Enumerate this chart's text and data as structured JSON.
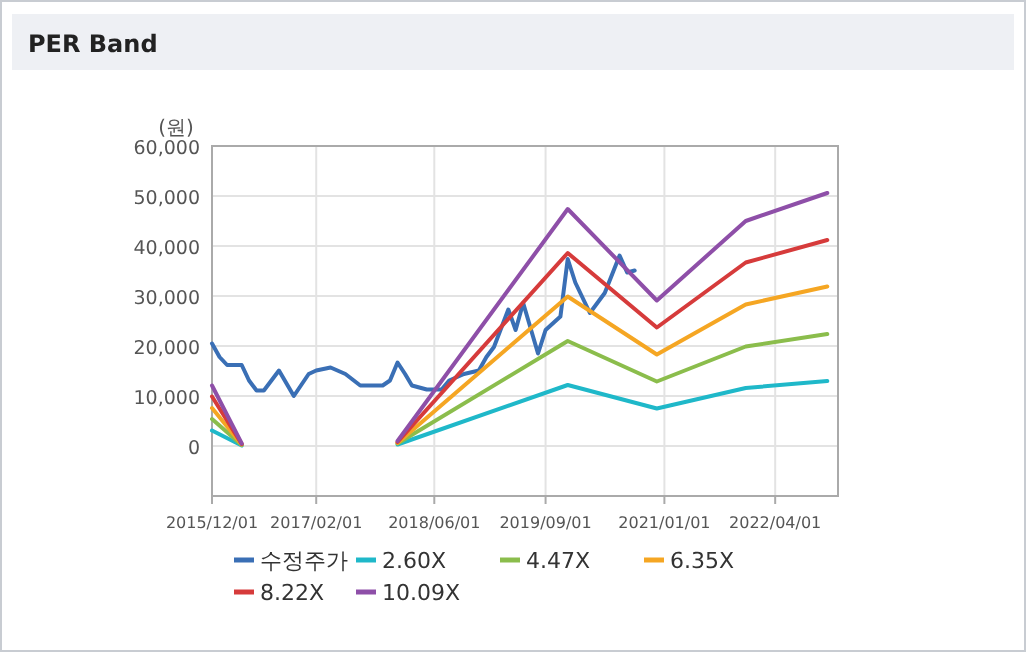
{
  "chart_data": {
    "type": "line",
    "title": "PER Band",
    "ylabel": "(원)",
    "xlim": [
      "2015-12-01",
      "2022-12-15"
    ],
    "xticks": [
      {
        "value": "2015-12-01",
        "label": "2015/12/01"
      },
      {
        "value": "2017-02-01",
        "label": "2017/02/01"
      },
      {
        "value": "2018-06-01",
        "label": "2018/06/01"
      },
      {
        "value": "2019-09-01",
        "label": "2019/09/01"
      },
      {
        "value": "2021-01-01",
        "label": "2021/01/01"
      },
      {
        "value": "2022-04-01",
        "label": "2022/04/01"
      }
    ],
    "ylim": [
      -10000,
      60000
    ],
    "yticks": [
      {
        "value": 0,
        "label": "0"
      },
      {
        "value": 10000,
        "label": "10,000"
      },
      {
        "value": 20000,
        "label": "20,000"
      },
      {
        "value": 30000,
        "label": "30,000"
      },
      {
        "value": 40000,
        "label": "40,000"
      },
      {
        "value": 50000,
        "label": "50,000"
      },
      {
        "value": 60000,
        "label": "60,000"
      }
    ],
    "grid": true,
    "legend": "bottom",
    "line_style": "solid",
    "marker": "none",
    "series": [
      {
        "name": "수정주가",
        "color": "#3a6fb5",
        "x": [
          "2015-12",
          "2016-01",
          "2016-02",
          "2016-04",
          "2016-05",
          "2016-06",
          "2016-07",
          "2016-09",
          "2016-11",
          "2017-01",
          "2017-02",
          "2017-04",
          "2017-06",
          "2017-08",
          "2017-11",
          "2017-12",
          "2018-01",
          "2018-02",
          "2018-03",
          "2018-05",
          "2018-07",
          "2018-08",
          "2018-10",
          "2018-12",
          "2019-01",
          "2019-02",
          "2019-04",
          "2019-05",
          "2019-06",
          "2019-08",
          "2019-09",
          "2019-11",
          "2019-12",
          "2020-01",
          "2020-03",
          "2020-05",
          "2020-07",
          "2020-08",
          "2020-09"
        ],
        "values": [
          20500,
          17800,
          16200,
          16200,
          13100,
          11100,
          11100,
          15100,
          10000,
          14400,
          15100,
          15700,
          14400,
          12100,
          12100,
          13100,
          16700,
          14400,
          12100,
          11300,
          11300,
          13100,
          14400,
          15100,
          17800,
          19800,
          27300,
          23200,
          28600,
          18500,
          23200,
          25900,
          37400,
          32700,
          26600,
          30600,
          38100,
          34700,
          35100
        ]
      },
      {
        "name": "2.60X",
        "color": "#1fb8c9",
        "x": [
          "2015-12",
          "2016-04",
          "2017-01",
          "2018-01",
          "2019-12",
          "2020-12",
          "2021-12",
          "2022-11"
        ],
        "values": [
          3100,
          100,
          null,
          300,
          12200,
          7500,
          11600,
          13000
        ]
      },
      {
        "name": "4.47X",
        "color": "#8bbd4c",
        "x": [
          "2015-12",
          "2016-04",
          "2017-01",
          "2018-01",
          "2019-12",
          "2020-12",
          "2021-12",
          "2022-11"
        ],
        "values": [
          5400,
          200,
          null,
          500,
          21000,
          12900,
          19900,
          22400
        ]
      },
      {
        "name": "6.35X",
        "color": "#f5a623",
        "x": [
          "2015-12",
          "2016-04",
          "2017-01",
          "2018-01",
          "2019-12",
          "2020-12",
          "2021-12",
          "2022-11"
        ],
        "values": [
          7600,
          300,
          null,
          600,
          29900,
          18300,
          28300,
          31900
        ]
      },
      {
        "name": "8.22X",
        "color": "#d63b3b",
        "x": [
          "2015-12",
          "2016-04",
          "2017-01",
          "2018-01",
          "2019-12",
          "2020-12",
          "2021-12",
          "2022-11"
        ],
        "values": [
          9900,
          400,
          null,
          800,
          38600,
          23700,
          36700,
          41200
        ]
      },
      {
        "name": "10.09X",
        "color": "#8e4fa8",
        "x": [
          "2015-12",
          "2016-04",
          "2017-01",
          "2018-01",
          "2019-12",
          "2020-12",
          "2021-12",
          "2022-11"
        ],
        "values": [
          12100,
          500,
          null,
          1000,
          47400,
          29100,
          45000,
          50600
        ]
      }
    ]
  }
}
